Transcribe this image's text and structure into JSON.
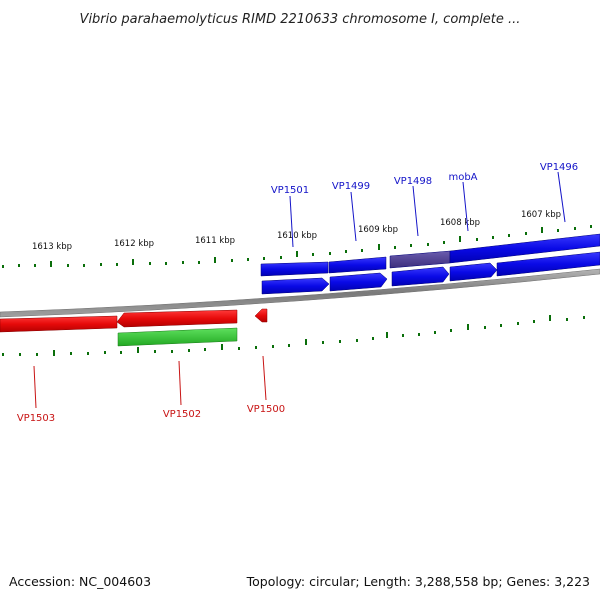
{
  "title": "Vibrio parahaemolyticus RIMD 2210633 chromosome I, complete ...",
  "footer": {
    "accession": "Accession: NC_004603",
    "summary": "Topology: circular; Length: 3,288,558 bp; Genes: 3,223"
  },
  "colors": {
    "forward": "#0a0ae6",
    "forward_highlight": "#4a3c8c",
    "reverse": "#e60a0a",
    "rna": "#2ec82e",
    "tick": "#0a6e0a",
    "backbone": "#8c8c8c",
    "forward_label": "#1414c8",
    "reverse_label": "#c81414"
  },
  "scale_labels": [
    "1613 kbp",
    "1612 kbp",
    "1611 kbp",
    "1610 kbp",
    "1609 kbp",
    "1608 kbp",
    "1607 kbp"
  ],
  "forward_labels": [
    "VP1501",
    "VP1499",
    "VP1498",
    "mobA",
    "VP1496"
  ],
  "reverse_labels": [
    "VP1503",
    "VP1502",
    "VP1500"
  ]
}
